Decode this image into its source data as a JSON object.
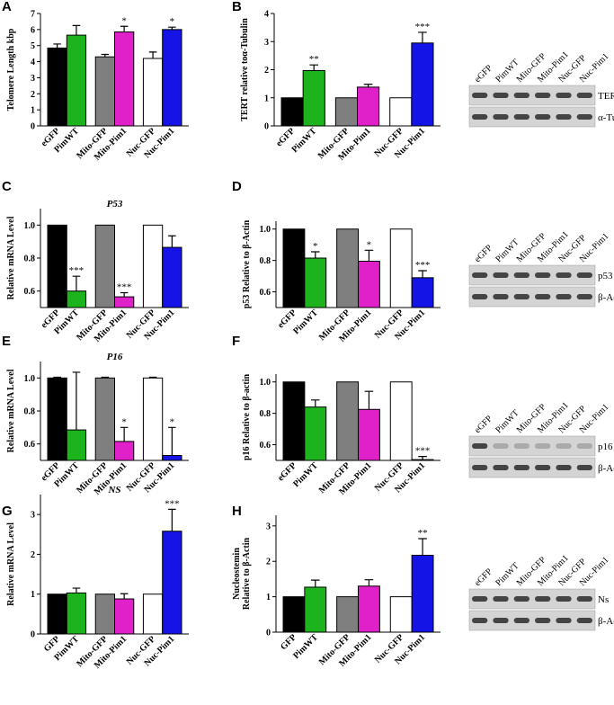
{
  "chart_data": [
    {
      "type": "bar",
      "label": "A",
      "ylabel": "Telomere Length kbp",
      "categories": [
        "eGFP",
        "PimWT",
        "Mito-GFP",
        "Mito-Pim1",
        "Nuc-GFP",
        "Nuc-Pim1"
      ],
      "values": [
        4.85,
        5.65,
        4.3,
        5.85,
        4.2,
        6.0
      ],
      "errors": [
        0.25,
        0.6,
        0.15,
        0.35,
        0.4,
        0.15
      ],
      "significance": [
        null,
        null,
        null,
        "*",
        null,
        "*"
      ],
      "colors": [
        "#000000",
        "#1db31d",
        "#7f7f7f",
        "#e020c8",
        "#ffffff",
        "#1414e6"
      ],
      "ylim": [
        0,
        7
      ],
      "yticks": [
        0,
        1,
        2,
        3,
        4,
        5,
        6,
        7
      ]
    },
    {
      "type": "bar",
      "label": "B",
      "ylabel": "TERT relative toα-Tubulin",
      "categories": [
        "eGFP",
        "PimWT",
        "Mito-GFP",
        "Mito-Pim1",
        "Nuc-GFP",
        "Nuc-Pim1"
      ],
      "values": [
        1,
        1.97,
        1,
        1.38,
        1,
        2.95
      ],
      "errors": [
        null,
        0.2,
        null,
        0.1,
        null,
        0.38
      ],
      "significance": [
        null,
        "**",
        null,
        null,
        null,
        "***"
      ],
      "colors": [
        "#000000",
        "#1db31d",
        "#7f7f7f",
        "#e020c8",
        "#ffffff",
        "#1414e6"
      ],
      "ylim": [
        0,
        4
      ],
      "yticks": [
        0,
        1,
        2,
        3,
        4
      ],
      "blot": {
        "lanes": [
          "eGFP",
          "PimWT",
          "Mito-GFP",
          "Mito-Pim1",
          "Nuc-GFP",
          "Nuc-Pim1"
        ],
        "rows": [
          "TERT",
          "α-Tubulin"
        ]
      }
    },
    {
      "type": "bar",
      "label": "C",
      "title": "P53",
      "ylabel": "Relative mRNA Level",
      "categories": [
        "eGFP",
        "PimWT",
        "Mito-GFP",
        "Mito-Pim1",
        "Nuc-GFP",
        "Nuc-Pim1"
      ],
      "values": [
        1,
        0.6,
        1,
        0.565,
        1,
        0.865
      ],
      "errors": [
        null,
        0.09,
        null,
        0.025,
        null,
        0.07
      ],
      "significance": [
        null,
        "***",
        null,
        "***",
        null,
        null
      ],
      "colors": [
        "#000000",
        "#1db31d",
        "#7f7f7f",
        "#e020c8",
        "#ffffff",
        "#1414e6"
      ],
      "ylim": [
        0.5,
        1.1
      ],
      "yticks": [
        0.6,
        0.8,
        {
          "value": 1,
          "label": "1.0"
        }
      ]
    },
    {
      "type": "bar",
      "label": "D",
      "ylabel": "p53 Relative to β-Actin",
      "categories": [
        "eGFP",
        "PimWT",
        "Mito-GFP",
        "Mito-Pim1",
        "Nuc-GFP",
        "Nuc-Pim1"
      ],
      "values": [
        1,
        0.815,
        1,
        0.795,
        1,
        0.69
      ],
      "errors": [
        null,
        0.04,
        null,
        0.07,
        null,
        0.045
      ],
      "significance": [
        null,
        "*",
        null,
        "*",
        null,
        "***"
      ],
      "colors": [
        "#000000",
        "#1db31d",
        "#7f7f7f",
        "#e020c8",
        "#ffffff",
        "#1414e6"
      ],
      "ylim": [
        0.5,
        1.05
      ],
      "yticks": [
        0.6,
        0.8,
        {
          "value": 1,
          "label": "1.0"
        }
      ],
      "blot": {
        "lanes": [
          "eGFP",
          "PimWT",
          "Mito-GFP",
          "Mito-Pim1",
          "Nuc-GFP",
          "Nuc-Pim1"
        ],
        "rows": [
          "p53",
          "β-Actin"
        ]
      }
    },
    {
      "type": "bar",
      "label": "E",
      "title": "P16",
      "ylabel": "Relative mRNA Level",
      "categories": [
        "eGFP",
        "PimWT",
        "Mito-GFP",
        "Mito-Pim1",
        "Nuc-GFP",
        "Nuc-Pim1"
      ],
      "values": [
        1,
        0.685,
        1,
        0.615,
        1,
        0.53
      ],
      "errors": [
        0.005,
        0.35,
        0.005,
        0.085,
        0.005,
        0.17
      ],
      "significance": [
        null,
        null,
        null,
        "*",
        null,
        "*"
      ],
      "colors": [
        "#000000",
        "#1db31d",
        "#7f7f7f",
        "#e020c8",
        "#ffffff",
        "#1414e6"
      ],
      "ylim": [
        0.5,
        1.1
      ],
      "yticks": [
        0.6,
        0.8,
        {
          "value": 1,
          "label": "1.0"
        }
      ]
    },
    {
      "type": "bar",
      "label": "F",
      "ylabel": "p16 Relative to β-actin",
      "categories": [
        "eGFP",
        "PimWT",
        "Mito-GFP",
        "Mito-Pim1",
        "Nuc-GFP",
        "Nuc-Pim1"
      ],
      "values": [
        1,
        0.84,
        1,
        0.825,
        1,
        0.505
      ],
      "errors": [
        null,
        0.045,
        null,
        0.115,
        null,
        0.02
      ],
      "significance": [
        null,
        null,
        null,
        null,
        null,
        "***"
      ],
      "colors": [
        "#000000",
        "#1db31d",
        "#7f7f7f",
        "#e020c8",
        "#ffffff",
        "#1414e6"
      ],
      "ylim": [
        0.5,
        1.05
      ],
      "yticks": [
        0.6,
        0.8,
        {
          "value": 1,
          "label": "1.0"
        }
      ],
      "blot": {
        "lanes": [
          "eGFP",
          "PimWT",
          "Mito-GFP",
          "Mito-Pim1",
          "Nuc-GFP",
          "Nuc-Pim1"
        ],
        "rows": [
          "p16",
          "β-Actin"
        ]
      }
    },
    {
      "type": "bar",
      "label": "G",
      "title": "NS",
      "ylabel": "Relative mRNA Level",
      "categories": [
        "GFP",
        "PimWT",
        "Mito-GFP",
        "Mito-Pim1",
        "Nuc-GFP",
        "Nuc-Pim1"
      ],
      "values": [
        1,
        1.03,
        1,
        0.88,
        1,
        2.58
      ],
      "errors": [
        null,
        0.12,
        null,
        0.13,
        null,
        0.55
      ],
      "significance": [
        null,
        null,
        null,
        null,
        null,
        "***"
      ],
      "colors": [
        "#000000",
        "#1db31d",
        "#7f7f7f",
        "#e020c8",
        "#ffffff",
        "#1414e6"
      ],
      "ylim": [
        0,
        3.5
      ],
      "yticks": [
        0,
        1,
        2,
        3
      ]
    },
    {
      "type": "bar",
      "label": "H",
      "ylabel": [
        "Nucleostemin",
        "Relative to β-Actin"
      ],
      "categories": [
        "GFP",
        "PimWT",
        "Mito-GFP",
        "Mito-Pim1",
        "Nuc-GFP",
        "Nuc-Pim1"
      ],
      "values": [
        1,
        1.27,
        1,
        1.3,
        1,
        2.17
      ],
      "errors": [
        null,
        0.2,
        null,
        0.18,
        null,
        0.47
      ],
      "significance": [
        null,
        null,
        null,
        null,
        null,
        "**"
      ],
      "colors": [
        "#000000",
        "#1db31d",
        "#7f7f7f",
        "#e020c8",
        "#ffffff",
        "#1414e6"
      ],
      "ylim": [
        0,
        3.3
      ],
      "yticks": [
        0,
        1,
        2,
        3
      ],
      "blot": {
        "lanes": [
          "eGFP",
          "PimWT",
          "Mito-GFP",
          "Mito-Pim1",
          "Nuc-GFP",
          "Nuc-Pim1"
        ],
        "rows": [
          "Ns",
          "β-Actin"
        ]
      }
    }
  ]
}
